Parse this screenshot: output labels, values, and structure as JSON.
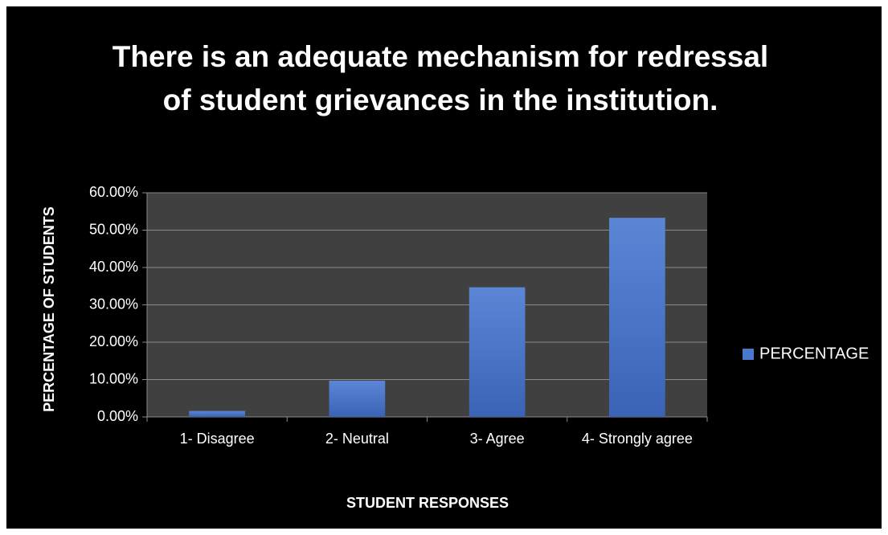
{
  "chart_data": {
    "type": "bar",
    "title": "There is an adequate mechanism for redressal of student grievances in the institution.",
    "x_label": "STUDENT RESPONSES",
    "y_label": "PERCENTAGE OF STUDENTS",
    "categories": [
      "1- Disagree",
      "2- Neutral",
      "3- Agree",
      "4- Strongly agree"
    ],
    "series": [
      {
        "name": "PERCENTAGE",
        "color": "#4a78cc",
        "values": [
          1.6,
          9.7,
          34.7,
          53.3
        ]
      }
    ],
    "ylim": [
      0,
      60
    ],
    "yticks": [
      {
        "value": 0,
        "label": "0.00%"
      },
      {
        "value": 10,
        "label": "10.00%"
      },
      {
        "value": 20,
        "label": "20.00%"
      },
      {
        "value": 30,
        "label": "30.00%"
      },
      {
        "value": 40,
        "label": "40.00%"
      },
      {
        "value": 50,
        "label": "50.00%"
      },
      {
        "value": 60,
        "label": "60.00%"
      }
    ],
    "grid": true,
    "legend": "right"
  }
}
